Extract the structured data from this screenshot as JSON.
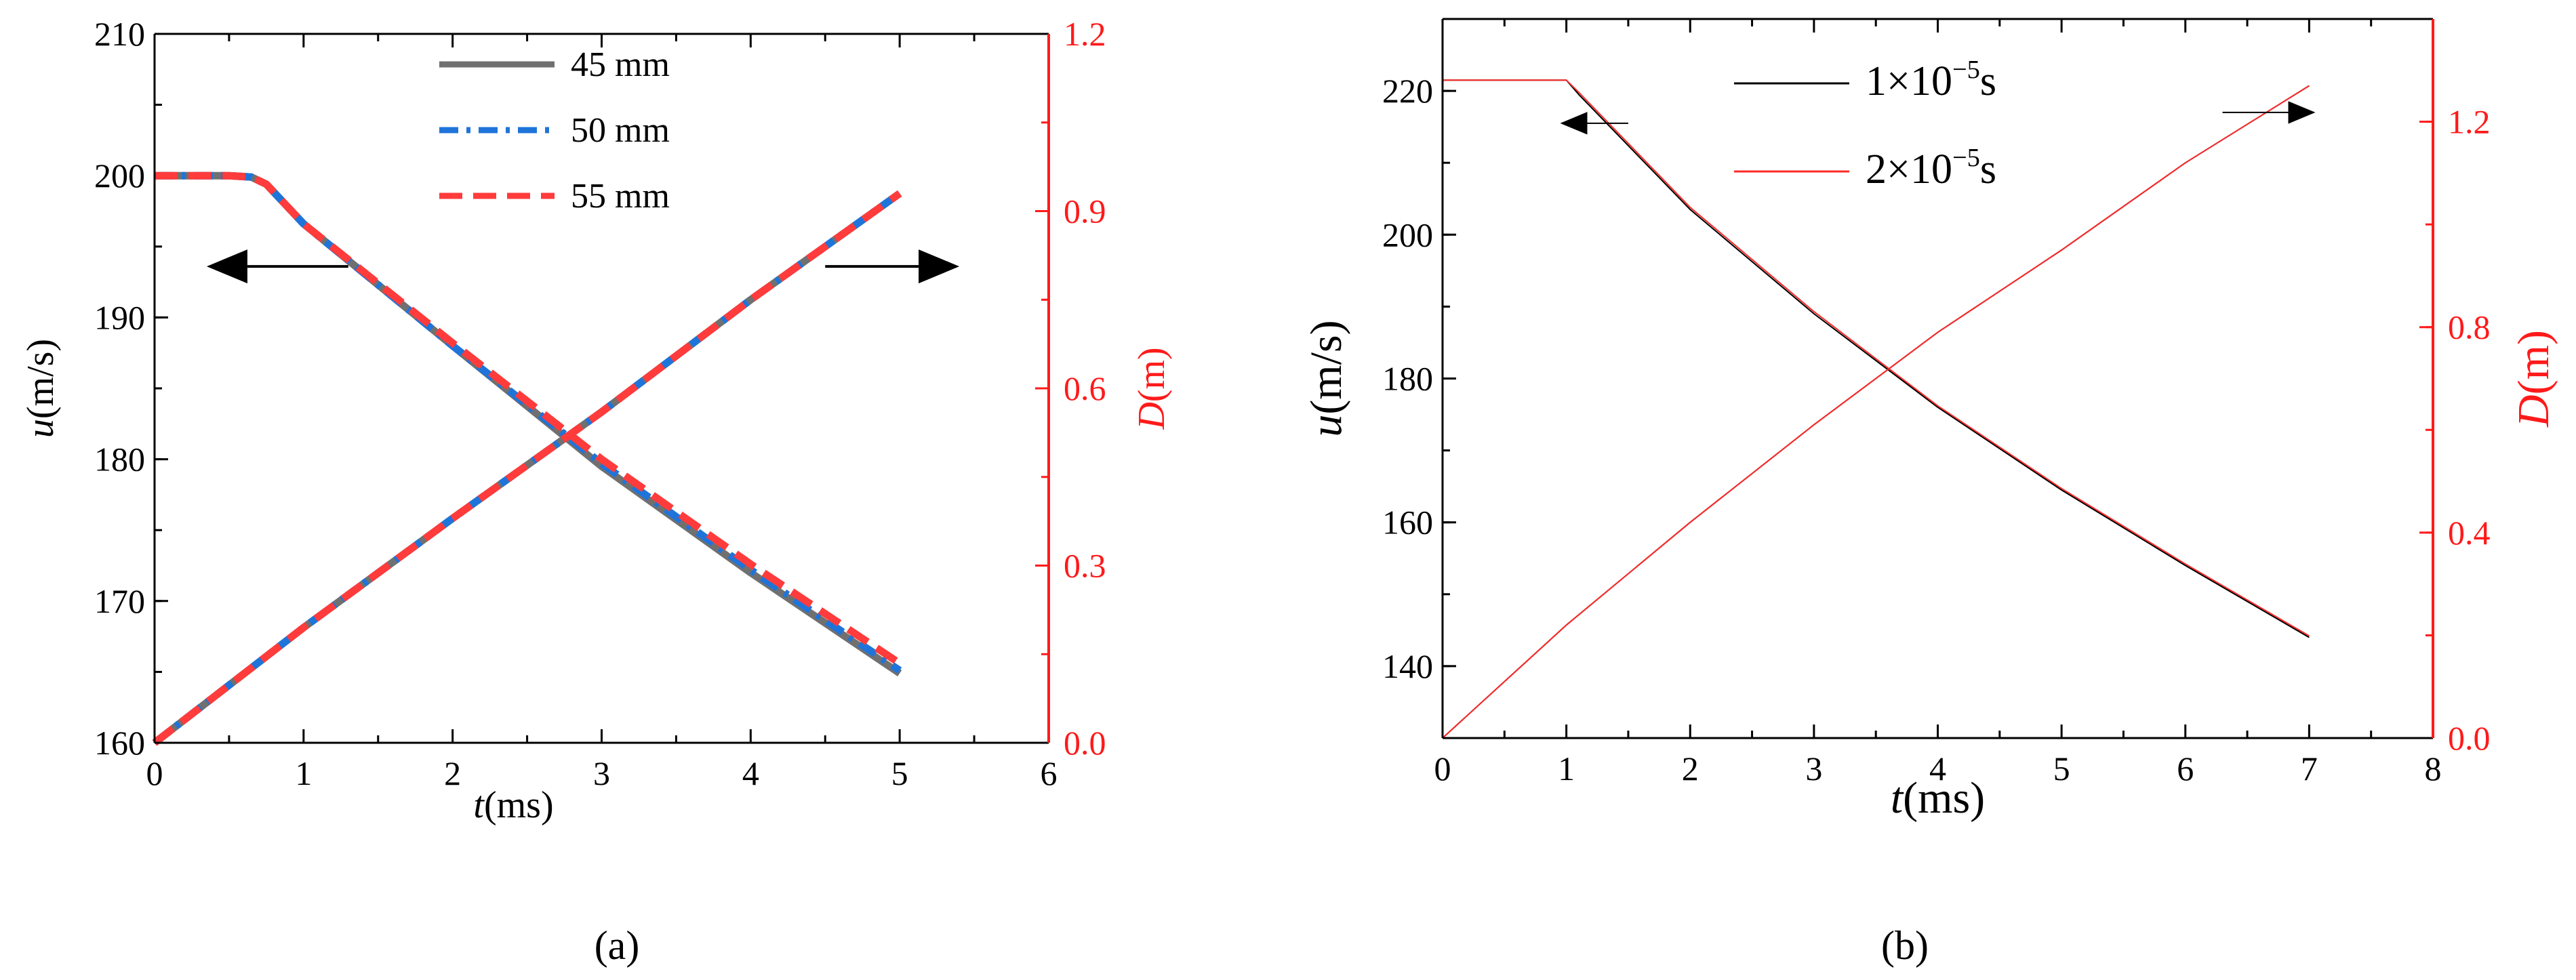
{
  "figure": {
    "panel_labels": [
      "(a)",
      "(b)"
    ]
  },
  "chart_data": [
    {
      "panel": "(a)",
      "type": "line",
      "xlabel": "t(ms)",
      "ylabel_left": "u(m/s)",
      "ylabel_right": "D(m)",
      "xlim": [
        0,
        6
      ],
      "ylim_left": [
        160,
        210
      ],
      "ylim_right": [
        0.0,
        1.2
      ],
      "xticks": [
        "0",
        "1",
        "2",
        "3",
        "4",
        "5",
        "6"
      ],
      "yticks_left": [
        "160",
        "170",
        "180",
        "190",
        "200",
        "210"
      ],
      "yticks_right": [
        "0.0",
        "0.3",
        "0.6",
        "0.9",
        "1.2"
      ],
      "right_axis_color": "#ff1a1a",
      "legend_position": "top-center",
      "series": [
        {
          "name": "45 mm",
          "color": "#707070",
          "style": "solid",
          "u": {
            "x": [
              0,
              0.5,
              0.65,
              0.75,
              1,
              2,
              3,
              4,
              5
            ],
            "y": [
              200.0,
              200.0,
              199.9,
              199.4,
              196.6,
              188.0,
              179.5,
              172.0,
              164.9
            ]
          },
          "D": {
            "x": [
              0,
              1,
              2,
              3,
              4,
              5
            ],
            "y": [
              0.0,
              0.195,
              0.38,
              0.56,
              0.75,
              0.93
            ]
          }
        },
        {
          "name": "50 mm",
          "color": "#1f74d9",
          "style": "dashdot",
          "u": {
            "x": [
              0,
              0.5,
              0.65,
              0.75,
              1,
              2,
              3,
              4,
              5
            ],
            "y": [
              200.0,
              200.0,
              199.9,
              199.4,
              196.6,
              188.0,
              179.7,
              172.2,
              165.1
            ]
          },
          "D": {
            "x": [
              0,
              1,
              2,
              3,
              4,
              5
            ],
            "y": [
              0.0,
              0.195,
              0.38,
              0.56,
              0.75,
              0.93
            ]
          }
        },
        {
          "name": "55 mm",
          "color": "#ff3b3b",
          "style": "dashed",
          "u": {
            "x": [
              0,
              0.5,
              0.65,
              0.75,
              1,
              2,
              3,
              4,
              5
            ],
            "y": [
              200.0,
              200.0,
              199.9,
              199.4,
              196.6,
              188.2,
              180.0,
              172.6,
              165.6
            ]
          },
          "D": {
            "x": [
              0,
              1,
              2,
              3,
              4,
              5
            ],
            "y": [
              0.0,
              0.195,
              0.38,
              0.56,
              0.75,
              0.93
            ]
          }
        }
      ],
      "arrows": [
        {
          "direction": "left",
          "points_to": "u",
          "x_from": 1.3,
          "x_to": 0.35,
          "y": 193.6
        },
        {
          "direction": "right",
          "points_to": "D",
          "x_from": 4.5,
          "x_to": 5.4,
          "y": 193.6
        }
      ]
    },
    {
      "panel": "(b)",
      "type": "line",
      "xlabel": "t(ms)",
      "ylabel_left": "u(m/s)",
      "ylabel_right": "D(m)",
      "xlim": [
        0,
        8
      ],
      "ylim_left": [
        130,
        230
      ],
      "ylim_right": [
        0.0,
        1.4
      ],
      "xticks": [
        "0",
        "1",
        "2",
        "3",
        "4",
        "5",
        "6",
        "7",
        "8"
      ],
      "yticks_left": [
        "140",
        "160",
        "180",
        "200",
        "220"
      ],
      "yticks_left_values": [
        140,
        160,
        180,
        200,
        220
      ],
      "yticks_right": [
        "0.0",
        "0.4",
        "0.8",
        "1.2"
      ],
      "yticks_right_values": [
        0.0,
        0.4,
        0.8,
        1.2
      ],
      "right_axis_color": "#ff1a1a",
      "legend_position": "top-center",
      "series": [
        {
          "name": "1×10⁻⁵s",
          "color": "#000000",
          "style": "solid",
          "u": {
            "x": [
              0,
              1.0,
              1.1,
              2,
              3,
              4,
              5,
              6,
              7
            ],
            "y": [
              221.5,
              221.5,
              219.5,
              203.5,
              189.0,
              176.0,
              164.5,
              154.0,
              144.0
            ]
          },
          "D": {
            "x": [
              0,
              1,
              2,
              3,
              4,
              5,
              6,
              7
            ],
            "y": [
              0.0,
              0.22,
              0.42,
              0.61,
              0.79,
              0.95,
              1.12,
              1.27
            ]
          }
        },
        {
          "name": "2×10⁻⁵s",
          "color": "#ff2a2a",
          "style": "solid",
          "u": {
            "x": [
              0,
              1.0,
              1.1,
              2,
              3,
              4,
              5,
              6,
              7
            ],
            "y": [
              221.5,
              221.5,
              219.8,
              203.8,
              189.3,
              176.2,
              164.7,
              154.2,
              144.2
            ]
          },
          "D": {
            "x": [
              0,
              1,
              2,
              3,
              4,
              5,
              6,
              7
            ],
            "y": [
              0.0,
              0.22,
              0.42,
              0.61,
              0.79,
              0.95,
              1.12,
              1.27
            ]
          }
        }
      ],
      "arrows": [
        {
          "direction": "left",
          "points_to": "u",
          "x_from": 1.5,
          "x_to": 0.95,
          "y": 215.5
        },
        {
          "direction": "right",
          "points_to": "D",
          "x_from": 6.3,
          "x_to": 7.05,
          "y": 217.0
        }
      ]
    }
  ]
}
